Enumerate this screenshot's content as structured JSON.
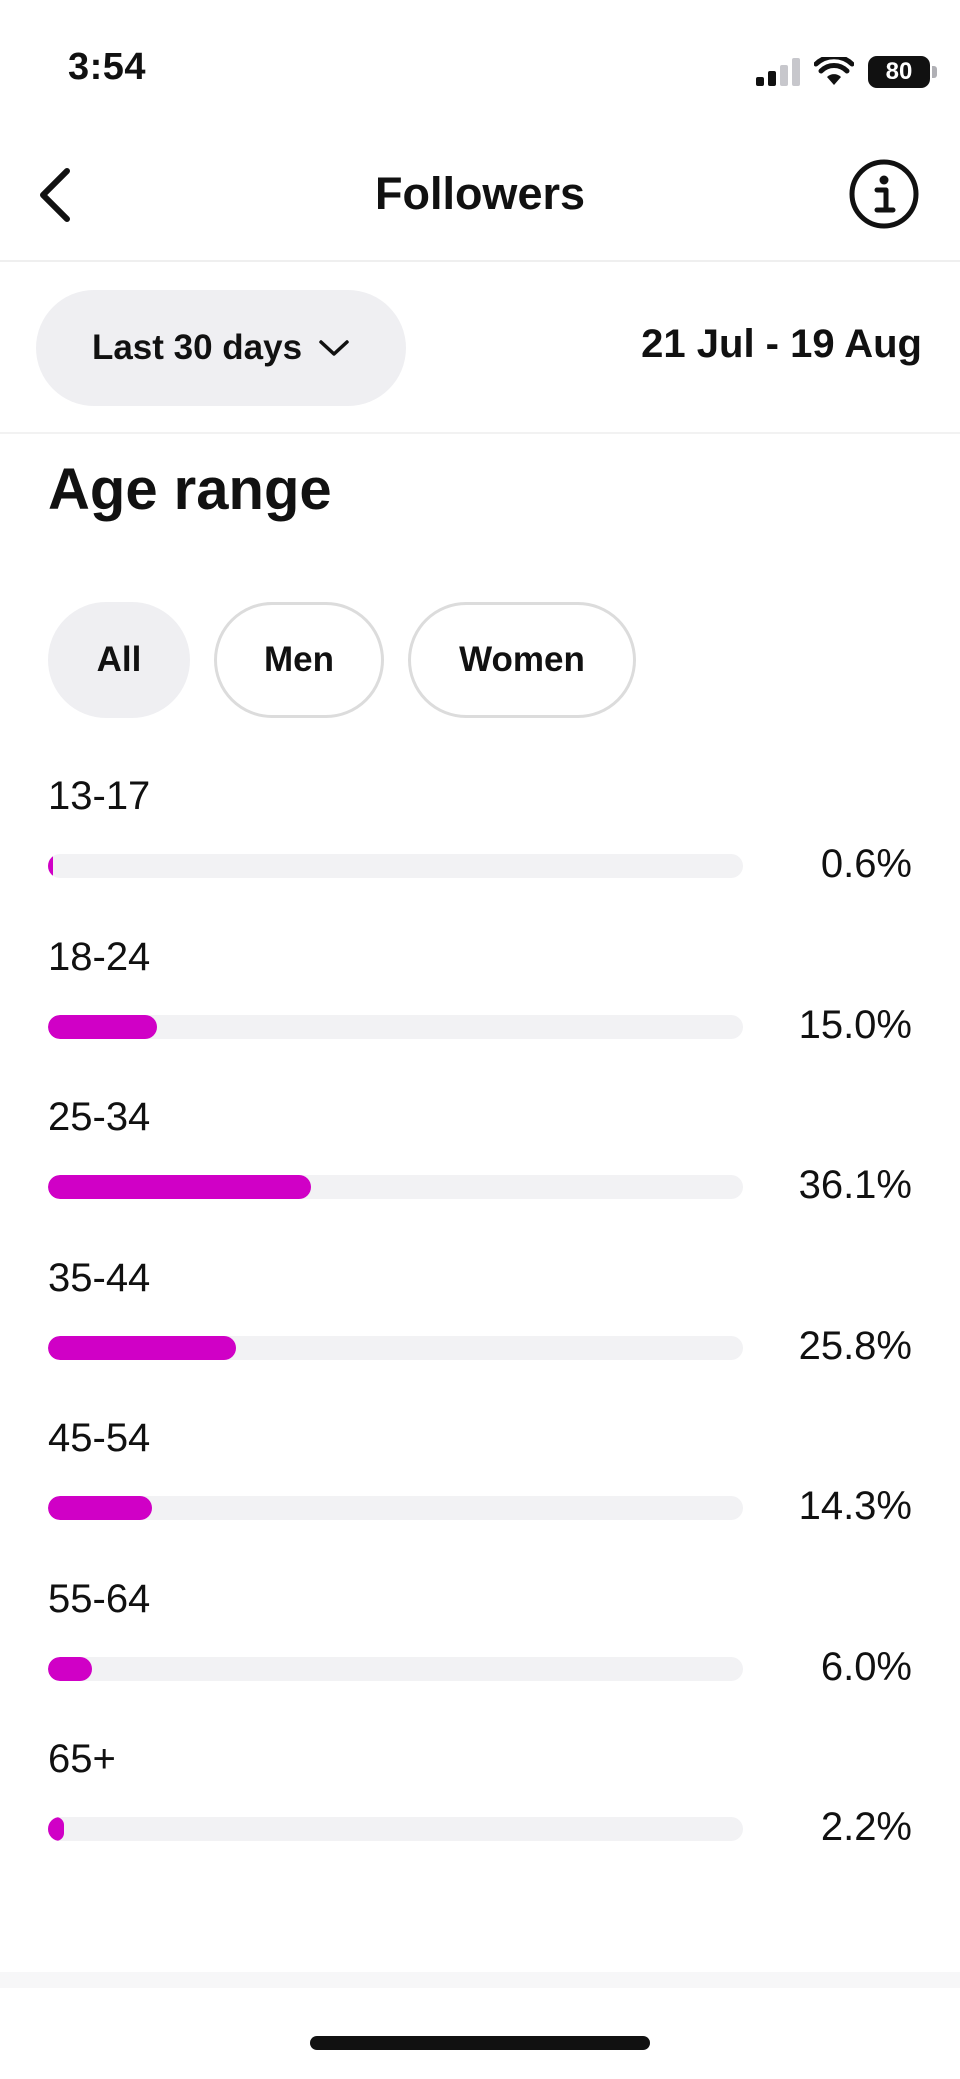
{
  "status_bar": {
    "time": "3:54",
    "battery": "80"
  },
  "nav": {
    "title": "Followers",
    "back_icon": "chevron-left-icon",
    "info_icon": "info-icon"
  },
  "filter": {
    "range_label": "Last 30 days",
    "date_range": "21 Jul - 19 Aug"
  },
  "section": {
    "title": "Age range"
  },
  "segments": [
    {
      "label": "All",
      "active": true
    },
    {
      "label": "Men",
      "active": false
    },
    {
      "label": "Women",
      "active": false
    }
  ],
  "accent_color": "#d000c6",
  "chart_data": {
    "type": "bar",
    "categories": [
      "13-17",
      "18-24",
      "25-34",
      "35-44",
      "45-54",
      "55-64",
      "65+"
    ],
    "values": [
      0.6,
      15.0,
      36.1,
      25.8,
      14.3,
      6.0,
      2.2
    ],
    "value_labels": [
      "0.6%",
      "15.0%",
      "36.1%",
      "25.8%",
      "14.3%",
      "6.0%",
      "2.2%"
    ],
    "xlim": [
      0,
      100
    ],
    "orientation": "horizontal"
  }
}
